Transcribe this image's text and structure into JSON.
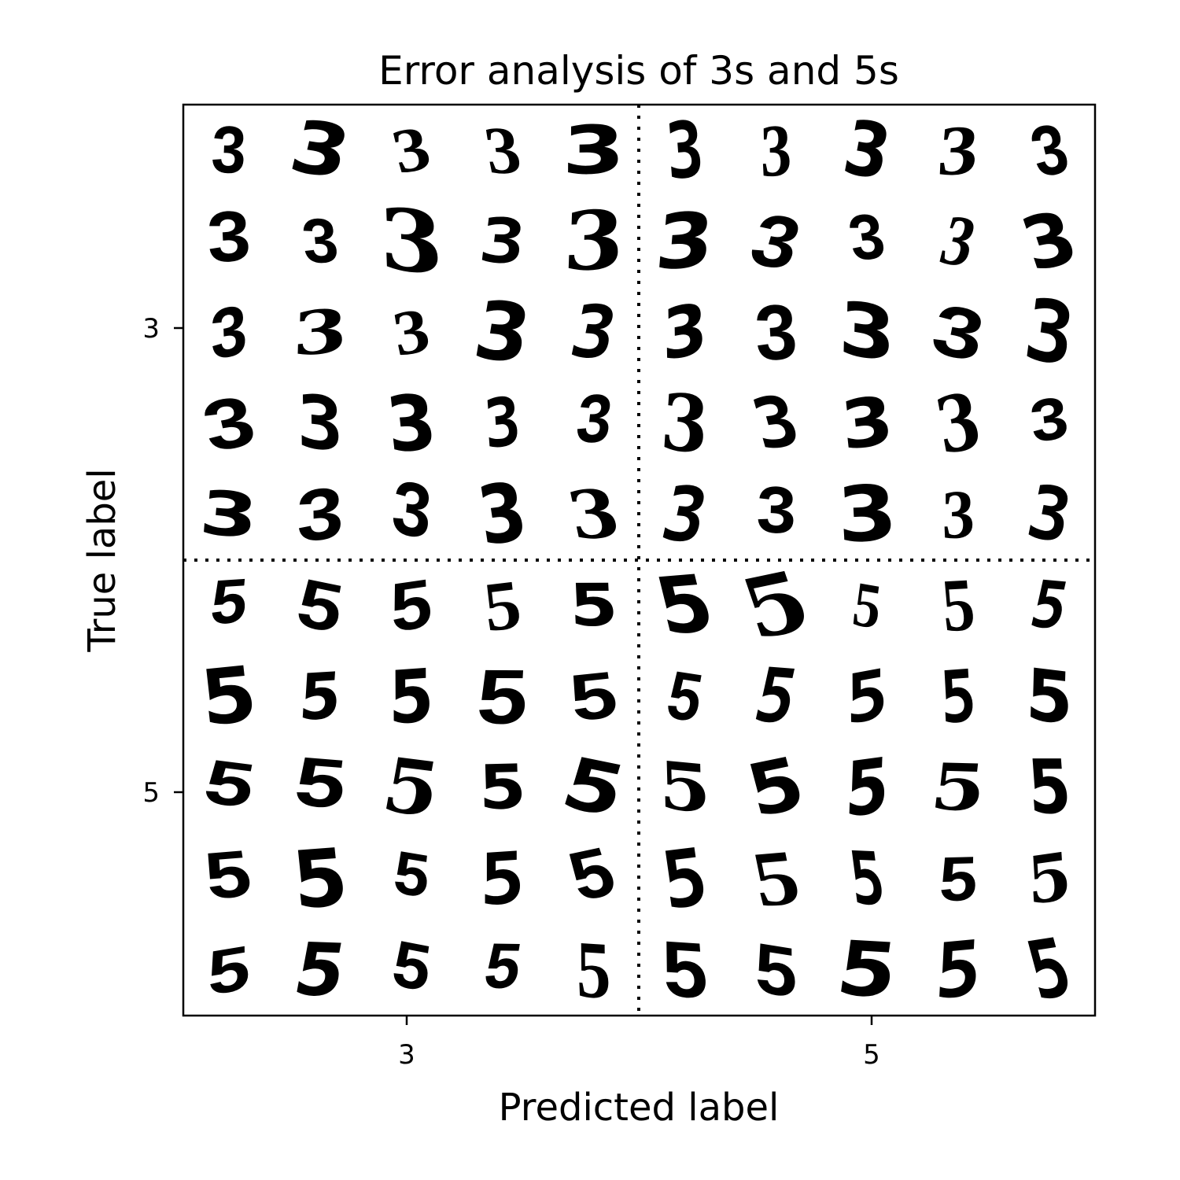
{
  "chart_data": {
    "type": "image-grid",
    "title": "Error analysis of 3s and 5s",
    "xlabel": "Predicted label",
    "ylabel": "True label",
    "xticks": [
      "3",
      "5"
    ],
    "yticks": [
      "3",
      "5"
    ],
    "grid_rows": 10,
    "grid_cols": 10,
    "quadrants": [
      {
        "true_label": "3",
        "predicted_label": "3",
        "sample_digit": "3",
        "count": 25
      },
      {
        "true_label": "3",
        "predicted_label": "5",
        "sample_digit": "3",
        "count": 25
      },
      {
        "true_label": "5",
        "predicted_label": "3",
        "sample_digit": "5",
        "count": 25
      },
      {
        "true_label": "5",
        "predicted_label": "5",
        "sample_digit": "5",
        "count": 25
      }
    ],
    "divider_style": "dotted",
    "colors": {
      "ink": "#000000",
      "background": "#ffffff"
    }
  }
}
